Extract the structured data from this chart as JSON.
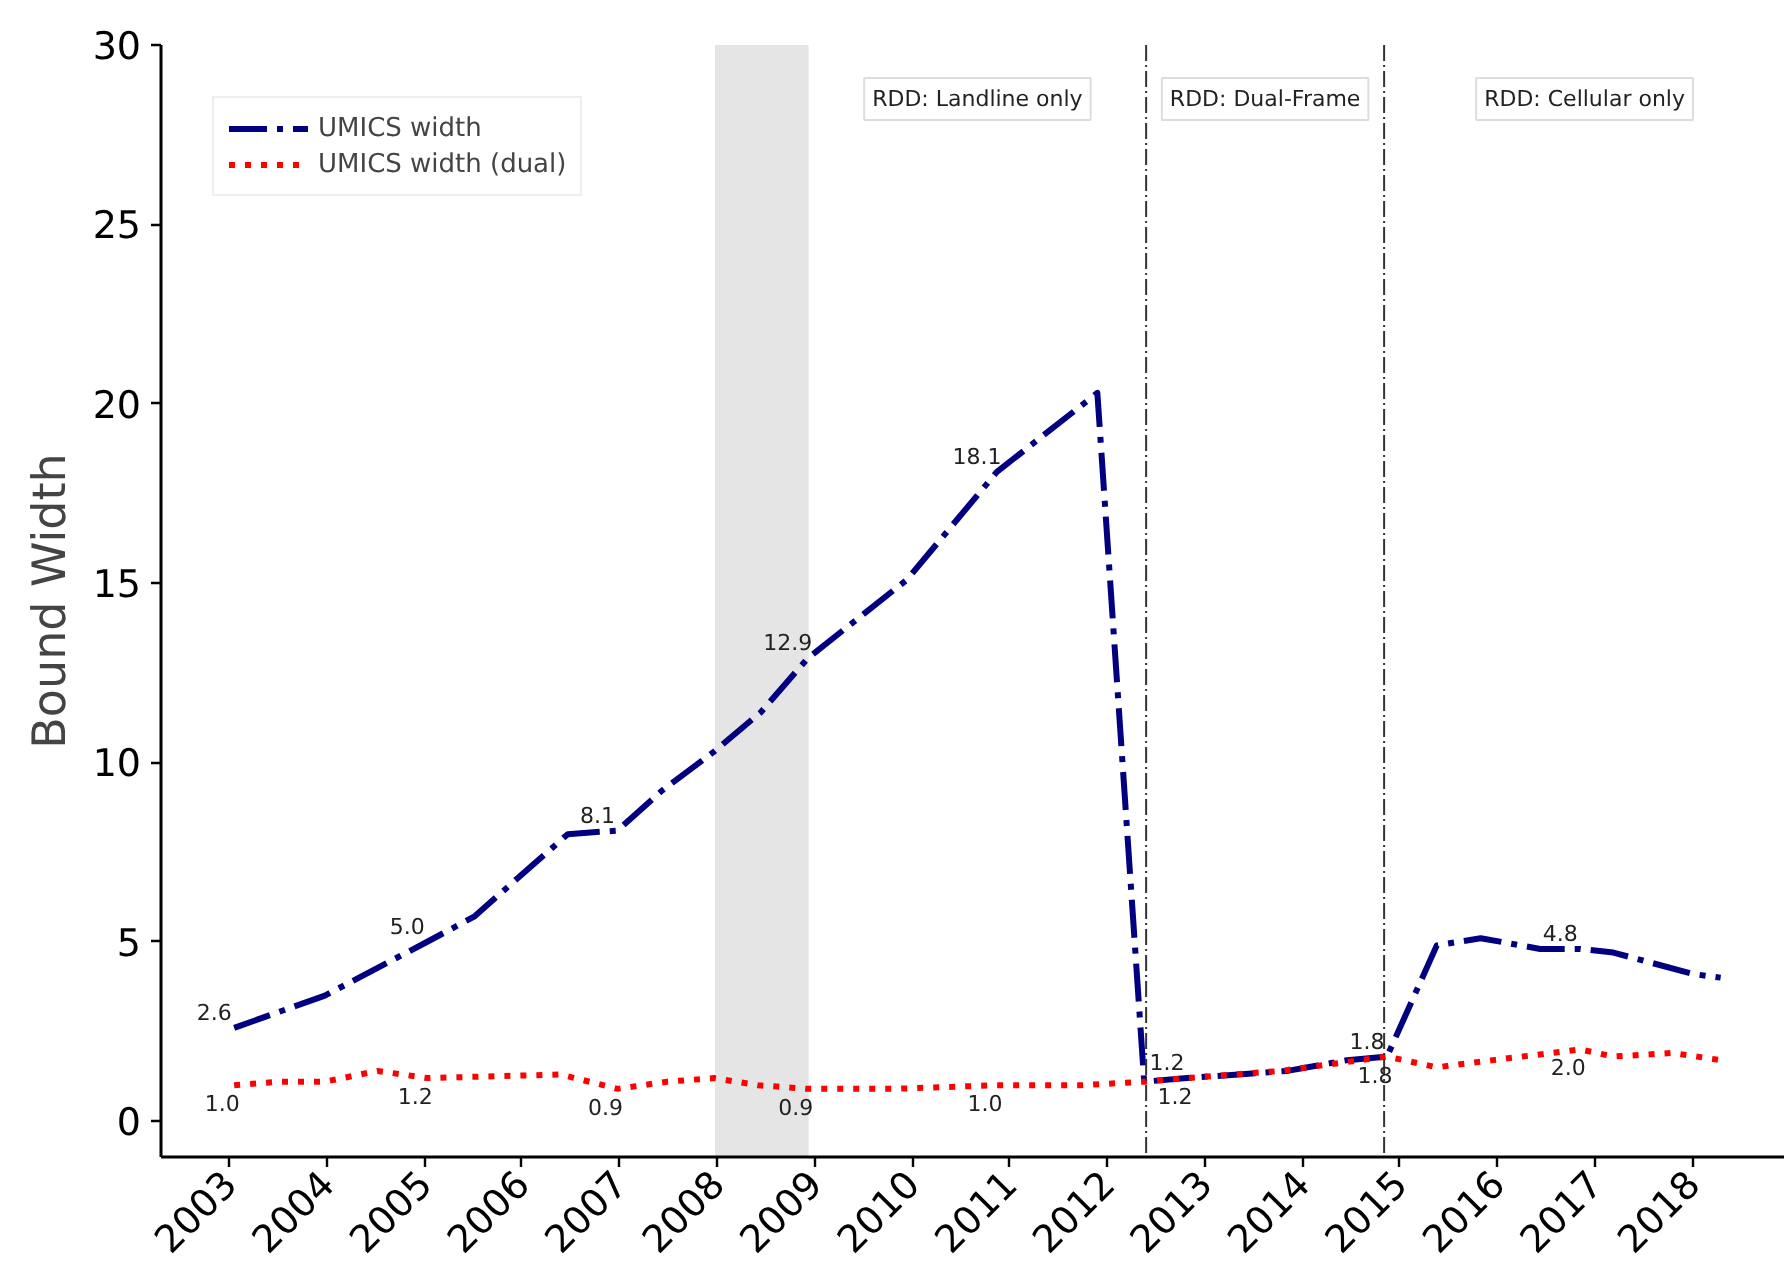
{
  "chart_data": {
    "type": "line",
    "ylabel": "Bound Width",
    "xlim": [
      2002.3,
      2018.95
    ],
    "ylim": [
      -1,
      30
    ],
    "xticks": [
      2003,
      2004,
      2005,
      2006,
      2007,
      2008,
      2009,
      2010,
      2011,
      2012,
      2013,
      2014,
      2015,
      2016,
      2017,
      2018
    ],
    "yticks": [
      0,
      5,
      10,
      15,
      20,
      25,
      30
    ],
    "legend": "top left",
    "series": [
      {
        "name": "UMICS width",
        "color": "#000080",
        "line_style": "dashdot",
        "x": [
          2003.05,
          2003.98,
          2005.03,
          2005.51,
          2006.47,
          2006.98,
          2007.43,
          2007.97,
          2008.45,
          2008.93,
          2009.95,
          2010.87,
          2011.9,
          2012.38,
          2012.82,
          2013.85,
          2014.46,
          2014.87,
          2015.38,
          2015.83,
          2016.44,
          2016.85,
          2017.19,
          2018.01,
          2018.29
        ],
        "values": [
          2.6,
          3.5,
          5.0,
          5.7,
          8.0,
          8.1,
          9.2,
          10.3,
          11.4,
          12.9,
          15.1,
          18.1,
          20.3,
          1.1,
          1.2,
          1.4,
          1.7,
          1.8,
          4.9,
          5.1,
          4.8,
          4.8,
          4.7,
          4.1,
          4.0
        ],
        "value_labels": [
          "2.6",
          null,
          "5.0",
          null,
          null,
          "8.1",
          null,
          null,
          null,
          "12.9",
          null,
          "18.1",
          null,
          null,
          "1.2",
          null,
          null,
          "1.8",
          null,
          null,
          null,
          "4.8",
          null,
          null,
          null
        ]
      },
      {
        "name": "UMICS width (dual)",
        "color": "#ff0000",
        "line_style": "dotted",
        "x": [
          2003.05,
          2003.53,
          2003.98,
          2004.52,
          2005.03,
          2006.4,
          2006.98,
          2007.49,
          2007.97,
          2008.42,
          2008.93,
          2009.82,
          2010.87,
          2011.73,
          2012.38,
          2012.82,
          2013.78,
          2014.87,
          2015.38,
          2015.96,
          2016.85,
          2017.19,
          2017.8,
          2018.29
        ],
        "values": [
          1.0,
          1.1,
          1.1,
          1.4,
          1.2,
          1.3,
          0.9,
          1.1,
          1.2,
          1.0,
          0.9,
          0.9,
          1.0,
          1.0,
          1.1,
          1.2,
          1.4,
          1.8,
          1.5,
          1.7,
          2.0,
          1.8,
          1.9,
          1.7
        ],
        "value_labels": [
          "1.0",
          null,
          null,
          null,
          "1.2",
          null,
          "0.9",
          null,
          null,
          null,
          "0.9",
          null,
          "1.0",
          null,
          null,
          "1.2",
          null,
          "1.8",
          null,
          null,
          "2.0",
          null,
          null,
          null
        ]
      }
    ],
    "ref_lines": [
      {
        "axis": "x",
        "value": 2012.4,
        "color": "#333333",
        "line_style": "dashdot"
      },
      {
        "axis": "x",
        "value": 2014.84,
        "color": "#333333",
        "line_style": "dashdot"
      }
    ],
    "bands": [
      {
        "axis": "x",
        "from": 2007.98,
        "to": 2008.94,
        "color": "#e5e5e5"
      }
    ],
    "annotations": [
      "RDD: Landline only",
      "RDD: Dual-Frame",
      "RDD: Cellular only"
    ]
  }
}
